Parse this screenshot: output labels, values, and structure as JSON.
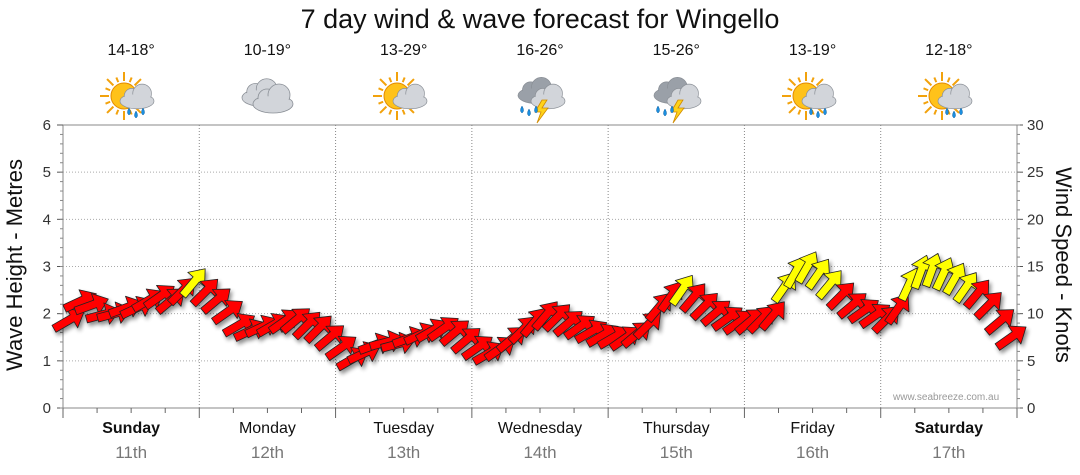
{
  "title": "7 day wind & wave forecast for Wingello",
  "credit": "www.seabreeze.com.au",
  "days": [
    {
      "name": "Sunday",
      "date": "11th",
      "temp": "14-18°",
      "icon": "partly-cloudy-showers-icon",
      "bold": true
    },
    {
      "name": "Monday",
      "date": "12th",
      "temp": "10-19°",
      "icon": "cloudy-icon",
      "bold": false
    },
    {
      "name": "Tuesday",
      "date": "13th",
      "temp": "13-29°",
      "icon": "partly-cloudy-icon",
      "bold": false
    },
    {
      "name": "Wednesday",
      "date": "14th",
      "temp": "16-26°",
      "icon": "thunderstorm-icon",
      "bold": false
    },
    {
      "name": "Thursday",
      "date": "15th",
      "temp": "15-26°",
      "icon": "thunderstorm-icon",
      "bold": false
    },
    {
      "name": "Friday",
      "date": "16th",
      "temp": "13-19°",
      "icon": "partly-cloudy-showers-icon",
      "bold": false
    },
    {
      "name": "Saturday",
      "date": "17th",
      "temp": "12-18°",
      "icon": "partly-cloudy-showers-icon",
      "bold": true
    }
  ],
  "chart_data": {
    "type": "scatter",
    "title": "7 day wind & wave forecast for Wingello",
    "left_axis": {
      "label": "Wave Height - Metres",
      "min": 0,
      "max": 6,
      "ticks": [
        "0",
        "1",
        "2",
        "3",
        "4",
        "5",
        "6"
      ]
    },
    "right_axis": {
      "label": "Wind Speed - Knots",
      "min": 0,
      "max": 30,
      "ticks": [
        "0",
        "5",
        "10",
        "15",
        "20",
        "25",
        "30"
      ]
    },
    "grid": true,
    "colors": {
      "below_threshold": "#ff0000",
      "above_threshold": "#ffff00",
      "outline": "#222222"
    },
    "series": [
      {
        "name": "Wind",
        "unit": "knots",
        "points_per_day": 12,
        "speed_knots": [
          9.3,
          11.3,
          10.9,
          9.9,
          10.0,
          10.6,
          10.6,
          11.4,
          11.8,
          11.4,
          12.4,
          13.3,
          12.3,
          11.4,
          10.2,
          8.8,
          8.2,
          8.6,
          8.8,
          9.2,
          9.3,
          8.8,
          8.4,
          7.5,
          6.4,
          5.2,
          5.8,
          6.7,
          7.0,
          6.8,
          7.4,
          7.8,
          8.2,
          8.4,
          8.0,
          7.2,
          6.4,
          5.8,
          6.3,
          7.3,
          8.3,
          9.1,
          9.8,
          9.6,
          9.0,
          8.6,
          8.1,
          7.7,
          7.5,
          7.4,
          7.8,
          8.8,
          10.7,
          11.8,
          12.5,
          11.7,
          10.8,
          10.1,
          9.5,
          9.1,
          9.2,
          9.4,
          9.8,
          12.8,
          14.4,
          14.9,
          14.2,
          13.1,
          11.9,
          10.9,
          10.3,
          9.8,
          9.4,
          10.5,
          13.1,
          14.4,
          14.6,
          14.2,
          13.7,
          12.8,
          12.1,
          10.9,
          9.2,
          7.5
        ],
        "direction_deg": [
          240,
          245,
          250,
          255,
          255,
          250,
          245,
          240,
          235,
          230,
          225,
          220,
          225,
          230,
          235,
          240,
          245,
          245,
          240,
          235,
          230,
          225,
          225,
          230,
          235,
          240,
          245,
          250,
          255,
          255,
          250,
          245,
          240,
          235,
          230,
          230,
          235,
          240,
          235,
          230,
          225,
          220,
          220,
          225,
          230,
          235,
          240,
          240,
          240,
          235,
          230,
          225,
          220,
          215,
          215,
          220,
          225,
          230,
          235,
          235,
          230,
          225,
          220,
          215,
          210,
          210,
          215,
          220,
          225,
          230,
          235,
          235,
          225,
          215,
          205,
          200,
          200,
          205,
          210,
          215,
          220,
          225,
          230,
          235
        ]
      }
    ],
    "threshold_knots": 12.5
  }
}
